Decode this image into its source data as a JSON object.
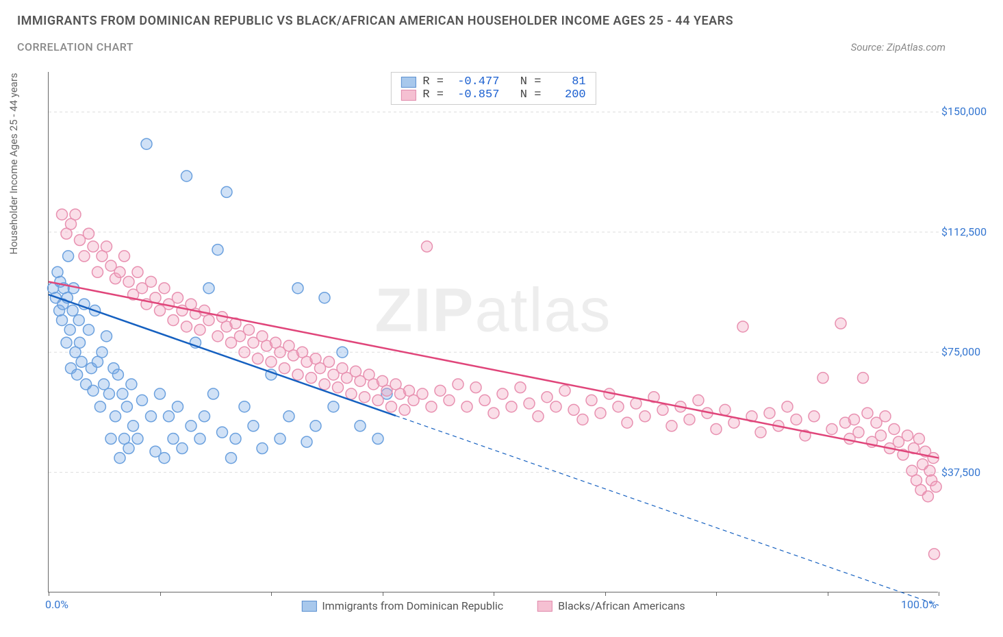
{
  "title": "IMMIGRANTS FROM DOMINICAN REPUBLIC VS BLACK/AFRICAN AMERICAN HOUSEHOLDER INCOME AGES 25 - 44 YEARS",
  "subtitle": "CORRELATION CHART",
  "source_prefix": "Source: ",
  "source_name": "ZipAtlas.com",
  "y_axis_label": "Householder Income Ages 25 - 44 years",
  "watermark_bold": "ZIP",
  "watermark_light": "atlas",
  "chart": {
    "type": "scatter",
    "xlim": [
      0,
      100
    ],
    "ylim": [
      0,
      162500
    ],
    "x_ticks": [
      0,
      12.5,
      25,
      37.5,
      50,
      62.5,
      75,
      87.5,
      100
    ],
    "x_tick_labels": {
      "0": "0.0%",
      "100": "100.0%"
    },
    "y_ticks": [
      37500,
      75000,
      112500,
      150000
    ],
    "y_tick_labels": [
      "$37,500",
      "$75,000",
      "$112,500",
      "$150,000"
    ],
    "background_color": "#ffffff",
    "grid_color": "#dddddd",
    "marker_radius": 8,
    "marker_stroke_width": 1.5,
    "trend_line_width": 2.5,
    "series": [
      {
        "id": "dominican",
        "label": "Immigrants from Dominican Republic",
        "fill": "rgba(120,170,230,0.35)",
        "stroke": "#6aa0de",
        "swatch_fill": "#a8c8ec",
        "swatch_stroke": "#5a8fd0",
        "trend_color": "#1560c0",
        "trend_solid_until_x": 39,
        "R": "-0.477",
        "N": "81",
        "trend": {
          "x1": 0,
          "y1": 93000,
          "x2": 100,
          "y2": -4000
        },
        "points": [
          [
            0.5,
            95000
          ],
          [
            0.8,
            92000
          ],
          [
            1.0,
            100000
          ],
          [
            1.2,
            88000
          ],
          [
            1.3,
            97000
          ],
          [
            1.5,
            85000
          ],
          [
            1.6,
            90000
          ],
          [
            1.7,
            95000
          ],
          [
            2.0,
            78000
          ],
          [
            2.1,
            92000
          ],
          [
            2.2,
            105000
          ],
          [
            2.4,
            82000
          ],
          [
            2.5,
            70000
          ],
          [
            2.7,
            88000
          ],
          [
            2.8,
            95000
          ],
          [
            3.0,
            75000
          ],
          [
            3.2,
            68000
          ],
          [
            3.4,
            85000
          ],
          [
            3.5,
            78000
          ],
          [
            3.7,
            72000
          ],
          [
            4.0,
            90000
          ],
          [
            4.2,
            65000
          ],
          [
            4.5,
            82000
          ],
          [
            4.8,
            70000
          ],
          [
            5.0,
            63000
          ],
          [
            5.2,
            88000
          ],
          [
            5.5,
            72000
          ],
          [
            5.8,
            58000
          ],
          [
            6.0,
            75000
          ],
          [
            6.2,
            65000
          ],
          [
            6.5,
            80000
          ],
          [
            6.8,
            62000
          ],
          [
            7.0,
            48000
          ],
          [
            7.3,
            70000
          ],
          [
            7.5,
            55000
          ],
          [
            7.8,
            68000
          ],
          [
            8.0,
            42000
          ],
          [
            8.3,
            62000
          ],
          [
            8.5,
            48000
          ],
          [
            8.8,
            58000
          ],
          [
            9.0,
            45000
          ],
          [
            9.3,
            65000
          ],
          [
            9.5,
            52000
          ],
          [
            10.0,
            48000
          ],
          [
            10.5,
            60000
          ],
          [
            11.0,
            140000
          ],
          [
            11.5,
            55000
          ],
          [
            12.0,
            44000
          ],
          [
            12.5,
            62000
          ],
          [
            13.0,
            42000
          ],
          [
            13.5,
            55000
          ],
          [
            14.0,
            48000
          ],
          [
            14.5,
            58000
          ],
          [
            15.0,
            45000
          ],
          [
            15.5,
            130000
          ],
          [
            16.0,
            52000
          ],
          [
            16.5,
            78000
          ],
          [
            17.0,
            48000
          ],
          [
            17.5,
            55000
          ],
          [
            18.0,
            95000
          ],
          [
            18.5,
            62000
          ],
          [
            19.0,
            107000
          ],
          [
            19.5,
            50000
          ],
          [
            20.0,
            125000
          ],
          [
            20.5,
            42000
          ],
          [
            21.0,
            48000
          ],
          [
            22.0,
            58000
          ],
          [
            23.0,
            52000
          ],
          [
            24.0,
            45000
          ],
          [
            25.0,
            68000
          ],
          [
            26.0,
            48000
          ],
          [
            27.0,
            55000
          ],
          [
            28.0,
            95000
          ],
          [
            29.0,
            47000
          ],
          [
            30.0,
            52000
          ],
          [
            31.0,
            92000
          ],
          [
            32.0,
            58000
          ],
          [
            33.0,
            75000
          ],
          [
            35.0,
            52000
          ],
          [
            37.0,
            48000
          ],
          [
            38.0,
            62000
          ]
        ]
      },
      {
        "id": "black",
        "label": "Blacks/African Americans",
        "fill": "rgba(240,160,190,0.35)",
        "stroke": "#e890b0",
        "swatch_fill": "#f5c0d2",
        "swatch_stroke": "#e08aac",
        "trend_color": "#e0457a",
        "trend_solid_until_x": 100,
        "R": "-0.857",
        "N": "200",
        "trend": {
          "x1": 0,
          "y1": 97000,
          "x2": 100,
          "y2": 42000
        },
        "points": [
          [
            1.5,
            118000
          ],
          [
            2.0,
            112000
          ],
          [
            2.5,
            115000
          ],
          [
            3.0,
            118000
          ],
          [
            3.5,
            110000
          ],
          [
            4.0,
            105000
          ],
          [
            4.5,
            112000
          ],
          [
            5.0,
            108000
          ],
          [
            5.5,
            100000
          ],
          [
            6.0,
            105000
          ],
          [
            6.5,
            108000
          ],
          [
            7.0,
            102000
          ],
          [
            7.5,
            98000
          ],
          [
            8.0,
            100000
          ],
          [
            8.5,
            105000
          ],
          [
            9.0,
            97000
          ],
          [
            9.5,
            93000
          ],
          [
            10.0,
            100000
          ],
          [
            10.5,
            95000
          ],
          [
            11.0,
            90000
          ],
          [
            11.5,
            97000
          ],
          [
            12.0,
            92000
          ],
          [
            12.5,
            88000
          ],
          [
            13.0,
            95000
          ],
          [
            13.5,
            90000
          ],
          [
            14.0,
            85000
          ],
          [
            14.5,
            92000
          ],
          [
            15.0,
            88000
          ],
          [
            15.5,
            83000
          ],
          [
            16.0,
            90000
          ],
          [
            16.5,
            87000
          ],
          [
            17.0,
            82000
          ],
          [
            17.5,
            88000
          ],
          [
            18.0,
            85000
          ],
          [
            19.0,
            80000
          ],
          [
            19.5,
            86000
          ],
          [
            20.0,
            83000
          ],
          [
            20.5,
            78000
          ],
          [
            21.0,
            84000
          ],
          [
            21.5,
            80000
          ],
          [
            22.0,
            75000
          ],
          [
            22.5,
            82000
          ],
          [
            23.0,
            78000
          ],
          [
            23.5,
            73000
          ],
          [
            24.0,
            80000
          ],
          [
            24.5,
            77000
          ],
          [
            25.0,
            72000
          ],
          [
            25.5,
            78000
          ],
          [
            26.0,
            75000
          ],
          [
            26.5,
            70000
          ],
          [
            27.0,
            77000
          ],
          [
            27.5,
            74000
          ],
          [
            28.0,
            68000
          ],
          [
            28.5,
            75000
          ],
          [
            29.0,
            72000
          ],
          [
            29.5,
            67000
          ],
          [
            30.0,
            73000
          ],
          [
            30.5,
            70000
          ],
          [
            31.0,
            65000
          ],
          [
            31.5,
            72000
          ],
          [
            32.0,
            68000
          ],
          [
            32.5,
            64000
          ],
          [
            33.0,
            70000
          ],
          [
            33.5,
            67000
          ],
          [
            34.0,
            62000
          ],
          [
            34.5,
            69000
          ],
          [
            35.0,
            66000
          ],
          [
            35.5,
            61000
          ],
          [
            36.0,
            68000
          ],
          [
            36.5,
            65000
          ],
          [
            37.0,
            60000
          ],
          [
            37.5,
            66000
          ],
          [
            38.0,
            63000
          ],
          [
            38.5,
            58000
          ],
          [
            39.0,
            65000
          ],
          [
            39.5,
            62000
          ],
          [
            40.0,
            57000
          ],
          [
            40.5,
            63000
          ],
          [
            41.0,
            60000
          ],
          [
            42.0,
            62000
          ],
          [
            42.5,
            108000
          ],
          [
            43.0,
            58000
          ],
          [
            44.0,
            63000
          ],
          [
            45.0,
            60000
          ],
          [
            46.0,
            65000
          ],
          [
            47.0,
            58000
          ],
          [
            48.0,
            64000
          ],
          [
            49.0,
            60000
          ],
          [
            50.0,
            56000
          ],
          [
            51.0,
            62000
          ],
          [
            52.0,
            58000
          ],
          [
            53.0,
            64000
          ],
          [
            54.0,
            59000
          ],
          [
            55.0,
            55000
          ],
          [
            56.0,
            61000
          ],
          [
            57.0,
            58000
          ],
          [
            58.0,
            63000
          ],
          [
            59.0,
            57000
          ],
          [
            60.0,
            54000
          ],
          [
            61.0,
            60000
          ],
          [
            62.0,
            56000
          ],
          [
            63.0,
            62000
          ],
          [
            64.0,
            58000
          ],
          [
            65.0,
            53000
          ],
          [
            66.0,
            59000
          ],
          [
            67.0,
            55000
          ],
          [
            68.0,
            61000
          ],
          [
            69.0,
            57000
          ],
          [
            70.0,
            52000
          ],
          [
            71.0,
            58000
          ],
          [
            72.0,
            54000
          ],
          [
            73.0,
            60000
          ],
          [
            74.0,
            56000
          ],
          [
            75.0,
            51000
          ],
          [
            76.0,
            57000
          ],
          [
            77.0,
            53000
          ],
          [
            78.0,
            83000
          ],
          [
            79.0,
            55000
          ],
          [
            80.0,
            50000
          ],
          [
            81.0,
            56000
          ],
          [
            82.0,
            52000
          ],
          [
            83.0,
            58000
          ],
          [
            84.0,
            54000
          ],
          [
            85.0,
            49000
          ],
          [
            86.0,
            55000
          ],
          [
            87.0,
            67000
          ],
          [
            88.0,
            51000
          ],
          [
            89.0,
            84000
          ],
          [
            89.5,
            53000
          ],
          [
            90.0,
            48000
          ],
          [
            90.5,
            54000
          ],
          [
            91.0,
            50000
          ],
          [
            91.5,
            67000
          ],
          [
            92.0,
            56000
          ],
          [
            92.5,
            47000
          ],
          [
            93.0,
            53000
          ],
          [
            93.5,
            49000
          ],
          [
            94.0,
            55000
          ],
          [
            94.5,
            45000
          ],
          [
            95.0,
            51000
          ],
          [
            95.5,
            47000
          ],
          [
            96.0,
            43000
          ],
          [
            96.5,
            49000
          ],
          [
            97.0,
            38000
          ],
          [
            97.2,
            45000
          ],
          [
            97.5,
            35000
          ],
          [
            97.8,
            48000
          ],
          [
            98.0,
            32000
          ],
          [
            98.2,
            40000
          ],
          [
            98.5,
            44000
          ],
          [
            98.8,
            30000
          ],
          [
            99.0,
            38000
          ],
          [
            99.2,
            35000
          ],
          [
            99.4,
            42000
          ],
          [
            99.5,
            12000
          ],
          [
            99.7,
            33000
          ]
        ]
      }
    ]
  }
}
